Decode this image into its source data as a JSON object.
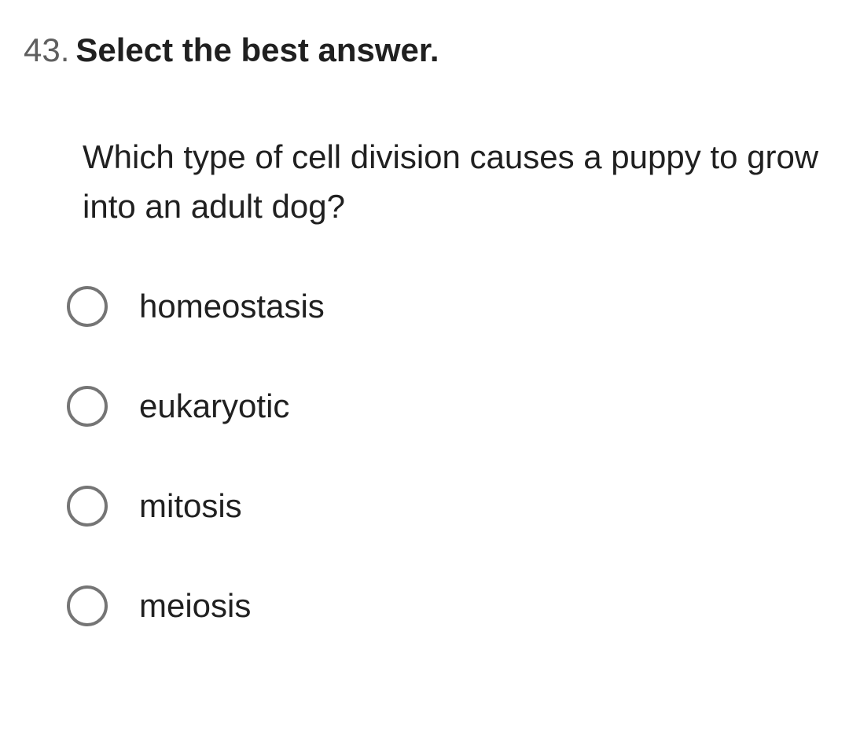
{
  "question": {
    "number": "43.",
    "title": "Select the best answer.",
    "text": "Which type of cell division causes a puppy to grow into an adult dog?",
    "title_fontsize": 42,
    "title_fontweight": 700,
    "text_fontsize": 42,
    "number_color": "#5f5f5f",
    "title_color": "#202020",
    "text_color": "#202020"
  },
  "options": [
    {
      "label": "homeostasis"
    },
    {
      "label": "eukaryotic"
    },
    {
      "label": "mitosis"
    },
    {
      "label": "meiosis"
    }
  ],
  "radio_style": {
    "size": 52,
    "border_width": 4,
    "border_color": "#757575",
    "background": "#ffffff"
  },
  "option_style": {
    "fontsize": 42,
    "color": "#202020",
    "fontweight": 400,
    "row_spacing": 75
  },
  "background_color": "#ffffff"
}
